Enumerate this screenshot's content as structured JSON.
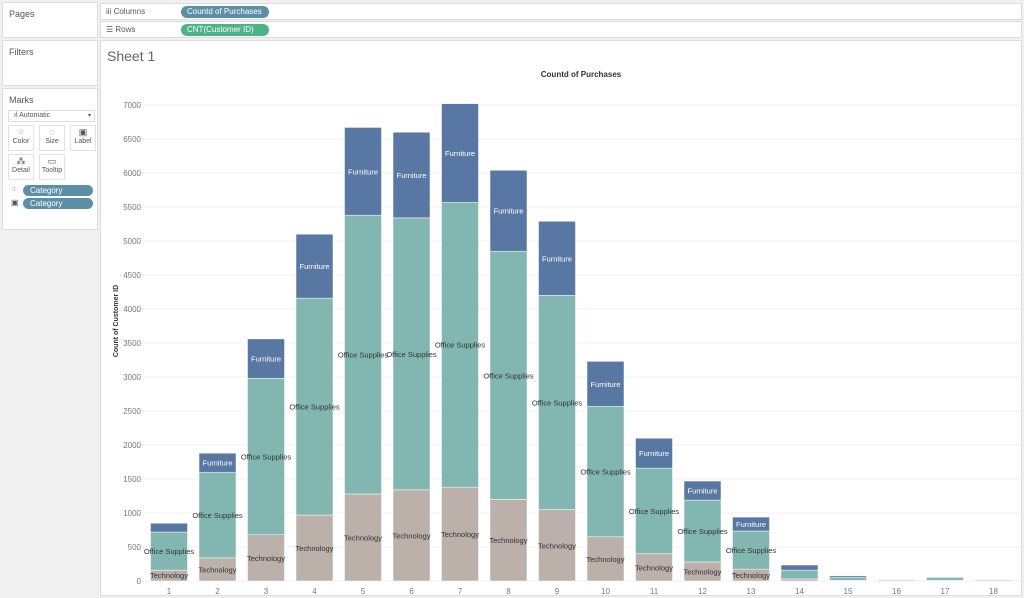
{
  "panels": {
    "pages": "Pages",
    "filters": "Filters",
    "marks": "Marks"
  },
  "marks": {
    "type": "Automatic",
    "buttons": [
      "Color",
      "Size",
      "Label",
      "Detail",
      "Tooltip"
    ],
    "pills": [
      {
        "icon": "color-icon",
        "label": "Category"
      },
      {
        "icon": "label-icon",
        "label": "Category"
      }
    ]
  },
  "shelves": {
    "columns_label": "Columns",
    "columns_pill": "Countd of Purchases",
    "rows_label": "Rows",
    "rows_pill": "CNT(Customer ID)"
  },
  "colors": {
    "columns_pill": "#5b8fa8",
    "rows_pill": "#4cb386",
    "Furniture": "#5977a3",
    "Office Supplies": "#82b6b0",
    "Technology": "#bcb0ab"
  },
  "sheet_title": "Sheet 1",
  "chart_data": {
    "type": "bar",
    "stacked": true,
    "title": "Countd of Purchases",
    "xlabel": "",
    "ylabel": "Count of Customer ID",
    "ylim": [
      0,
      7000
    ],
    "yticks": [
      0,
      500,
      1000,
      1500,
      2000,
      2500,
      3000,
      3500,
      4000,
      4500,
      5000,
      5500,
      6000,
      6500,
      7000
    ],
    "grid": true,
    "categories": [
      "1",
      "2",
      "3",
      "4",
      "5",
      "6",
      "7",
      "8",
      "9",
      "10",
      "11",
      "12",
      "13",
      "14",
      "15",
      "16",
      "17",
      "18"
    ],
    "series": [
      {
        "name": "Technology",
        "values": [
          160,
          340,
          680,
          970,
          1280,
          1340,
          1380,
          1200,
          1050,
          650,
          400,
          280,
          175,
          30,
          10,
          5,
          10,
          5
        ]
      },
      {
        "name": "Office Supplies",
        "values": [
          560,
          1260,
          2300,
          3190,
          4100,
          4000,
          4190,
          3650,
          3150,
          1920,
          1260,
          910,
          560,
          130,
          45,
          15,
          40,
          15
        ]
      },
      {
        "name": "Furniture",
        "values": [
          130,
          280,
          580,
          940,
          1290,
          1260,
          1450,
          1190,
          1090,
          660,
          440,
          280,
          205,
          75,
          20,
          5,
          10,
          5
        ]
      }
    ]
  }
}
